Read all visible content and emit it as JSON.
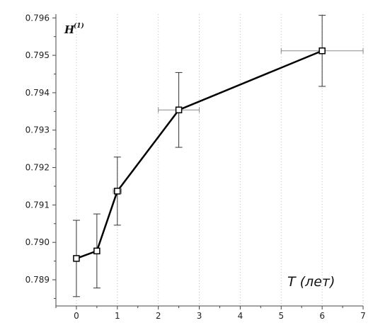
{
  "chart_data": {
    "type": "line",
    "xlabel": {
      "main": "T (лет)"
    },
    "ylabel": {
      "main": "H",
      "superscript": "(1)"
    },
    "xlim": [
      -0.5,
      7
    ],
    "ylim": [
      0.7883,
      0.7961
    ],
    "x_ticks": [
      "0",
      "1",
      "2",
      "3",
      "4",
      "5",
      "6",
      "7"
    ],
    "x_tick_values": [
      0,
      1,
      2,
      3,
      4,
      5,
      6,
      7
    ],
    "y_ticks": [
      "0.789",
      "0.790",
      "0.791",
      "0.792",
      "0.793",
      "0.794",
      "0.795",
      "0.796"
    ],
    "y_tick_values": [
      0.789,
      0.79,
      0.791,
      0.792,
      0.793,
      0.794,
      0.795,
      0.796
    ],
    "grid": "dotted vertical",
    "series": [
      {
        "x": [
          0,
          0.5,
          1,
          2.5,
          6
        ],
        "y": [
          0.78957,
          0.78977,
          0.79137,
          0.79354,
          0.79512
        ],
        "y_err": [
          0.00102,
          0.00099,
          0.00091,
          0.001,
          0.00095
        ],
        "x_err": [
          0,
          0,
          0.1,
          0.5,
          1.0
        ],
        "color": "#000000"
      }
    ]
  }
}
